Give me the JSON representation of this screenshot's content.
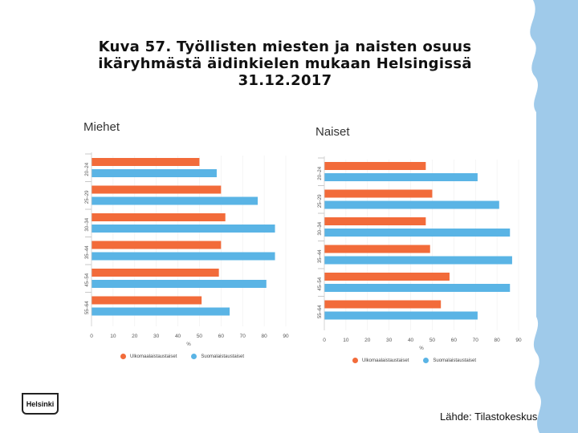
{
  "slide": {
    "title_line1": "Kuva 57. Työllisten miesten ja naisten osuus",
    "title_line2": "ikäryhmästä äidinkielen mukaan Helsingissä",
    "title_line3": "31.12.2017",
    "source": "Lähde: Tilastokeskus",
    "logo_text": "Helsinki"
  },
  "colors": {
    "foreign": "#f26b3a",
    "finnish": "#5ab4e5",
    "deco": "#9fcaea"
  },
  "chart_data": [
    {
      "type": "bar",
      "orientation": "horizontal",
      "title": "Miehet",
      "categories": [
        "20–24",
        "25–29",
        "30–34",
        "35–44",
        "45–54",
        "55–64"
      ],
      "series": [
        {
          "name": "Ulkomaalaistaustaiset",
          "values": [
            50,
            60,
            62,
            60,
            59,
            51
          ]
        },
        {
          "name": "Suomalaistaustaiset",
          "values": [
            58,
            77,
            85,
            85,
            81,
            64
          ]
        }
      ],
      "xticks": [
        "0",
        "10",
        "20",
        "30",
        "40",
        "50",
        "60",
        "70",
        "80",
        "90"
      ],
      "xlabel": "%",
      "xlim": [
        0,
        90
      ]
    },
    {
      "type": "bar",
      "orientation": "horizontal",
      "title": "Naiset",
      "categories": [
        "20–24",
        "25–29",
        "30–34",
        "35–44",
        "45–54",
        "55–64"
      ],
      "series": [
        {
          "name": "Ulkomaalaistaustaiset",
          "values": [
            47,
            50,
            47,
            49,
            58,
            54
          ]
        },
        {
          "name": "Suomalaistaustaiset",
          "values": [
            71,
            81,
            86,
            87,
            86,
            71
          ]
        }
      ],
      "xticks": [
        "0",
        "10",
        "20",
        "30",
        "40",
        "50",
        "60",
        "70",
        "80",
        "90"
      ],
      "xlabel": "%",
      "xlim": [
        0,
        90
      ]
    }
  ]
}
